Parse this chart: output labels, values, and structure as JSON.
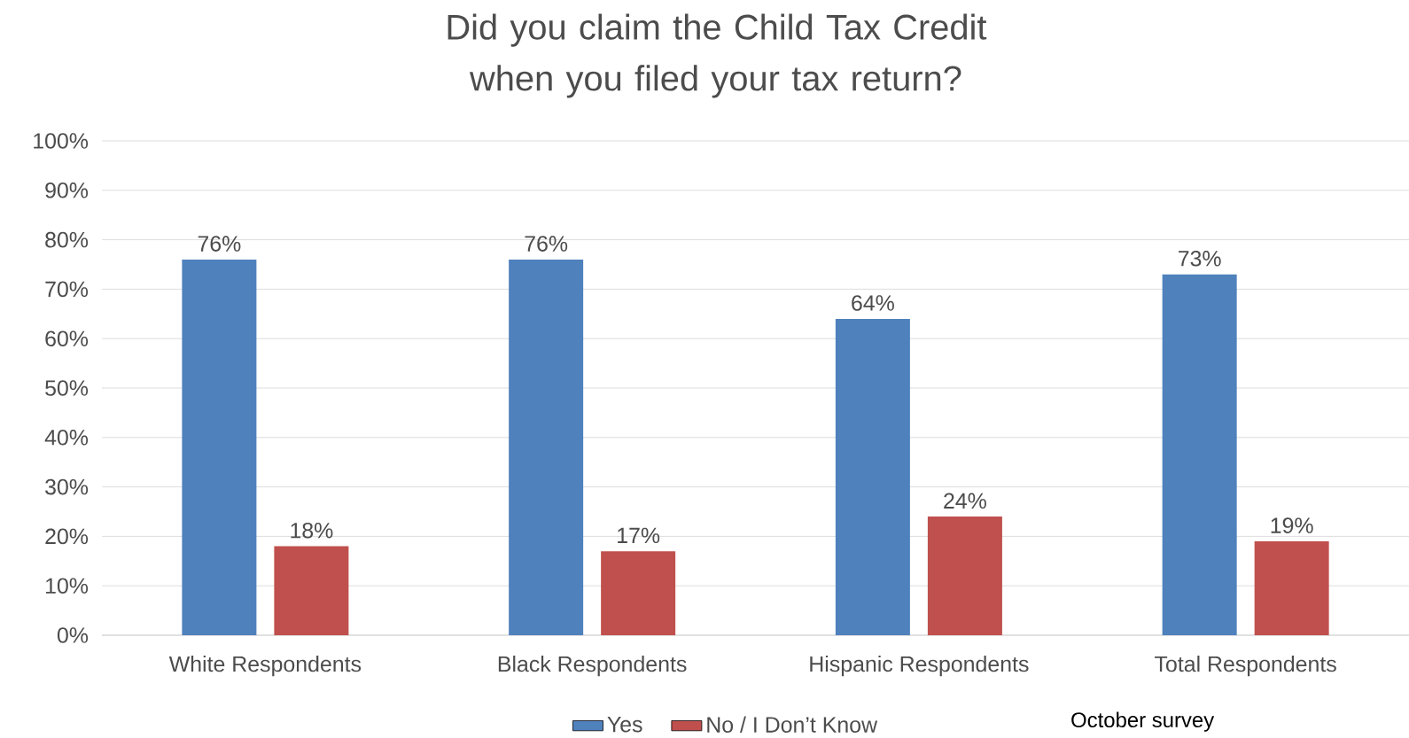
{
  "chart_data": {
    "type": "bar",
    "title": "Did you claim the Child Tax Credit when you filed your tax return?",
    "categories": [
      "White Respondents",
      "Black Respondents",
      "Hispanic Respondents",
      "Total Respondents"
    ],
    "series": [
      {
        "name": "Yes",
        "color": "#4f81bd",
        "values": [
          76,
          76,
          64,
          73
        ],
        "value_labels": [
          "76%",
          "76%",
          "64%",
          "73%"
        ]
      },
      {
        "name": "No / I Don’t Know",
        "color": "#c0504d",
        "values": [
          18,
          17,
          24,
          19
        ],
        "value_labels": [
          "18%",
          "17%",
          "24%",
          "19%"
        ]
      }
    ],
    "ylim": [
      0,
      100
    ],
    "yticks": [
      {
        "value": 0,
        "label": "0%"
      },
      {
        "value": 10,
        "label": "10%"
      },
      {
        "value": 20,
        "label": "20%"
      },
      {
        "value": 30,
        "label": "30%"
      },
      {
        "value": 40,
        "label": "40%"
      },
      {
        "value": 50,
        "label": "50%"
      },
      {
        "value": 60,
        "label": "60%"
      },
      {
        "value": 70,
        "label": "70%"
      },
      {
        "value": 80,
        "label": "80%"
      },
      {
        "value": 90,
        "label": "90%"
      },
      {
        "value": 100,
        "label": "100%"
      }
    ],
    "grid": "y",
    "legend": "bottom",
    "annotations": [
      "October survey"
    ]
  }
}
